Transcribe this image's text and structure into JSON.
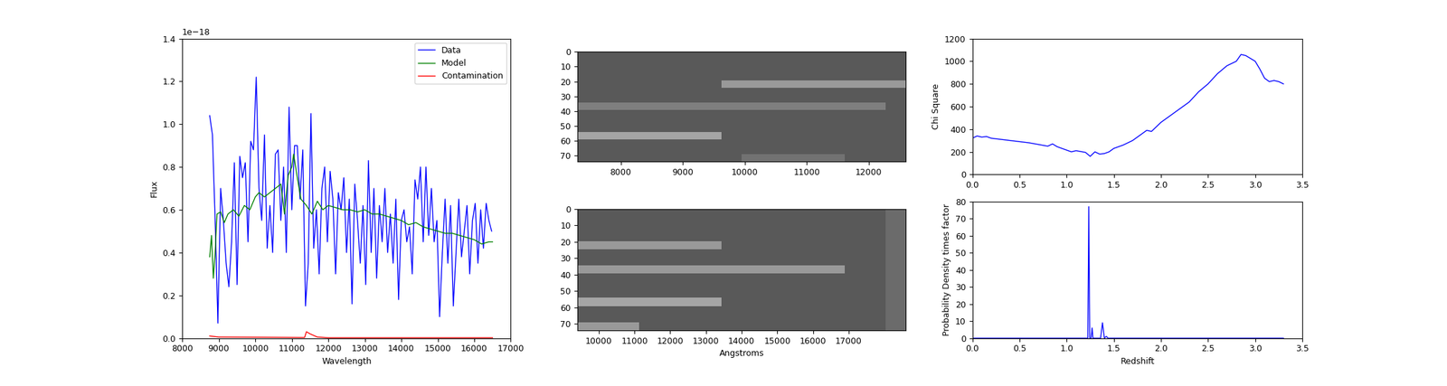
{
  "chart_data": [
    {
      "type": "line",
      "xlabel": "Wavelength",
      "ylabel": "Flux",
      "xlim": [
        8000,
        17000
      ],
      "xticks": [
        8000,
        9000,
        10000,
        11000,
        12000,
        13000,
        14000,
        15000,
        16000,
        17000
      ],
      "ylim": [
        0,
        1.4
      ],
      "yticks": [
        0.0,
        0.2,
        0.4,
        0.6,
        0.8,
        1.0,
        1.2,
        1.4
      ],
      "annotations": [
        {
          "text": "1e−18"
        }
      ],
      "legend": "upper right",
      "series": [
        {
          "name": "Data",
          "color": "#0000ff",
          "x": [
            8750,
            8825,
            8900,
            8975,
            9050,
            9125,
            9200,
            9275,
            9350,
            9425,
            9500,
            9575,
            9650,
            9725,
            9800,
            9875,
            9950,
            10025,
            10100,
            10175,
            10250,
            10325,
            10400,
            10475,
            10550,
            10625,
            10700,
            10775,
            10850,
            10925,
            11000,
            11075,
            11150,
            11225,
            11300,
            11375,
            11450,
            11525,
            11600,
            11675,
            11750,
            11825,
            11900,
            11975,
            12050,
            12125,
            12200,
            12275,
            12350,
            12425,
            12500,
            12575,
            12650,
            12725,
            12800,
            12875,
            12950,
            13025,
            13100,
            13175,
            13250,
            13325,
            13400,
            13475,
            13550,
            13625,
            13700,
            13775,
            13850,
            13925,
            14000,
            14075,
            14150,
            14225,
            14300,
            14375,
            14450,
            14525,
            14600,
            14675,
            14750,
            14825,
            14900,
            14975,
            15050,
            15125,
            15200,
            15275,
            15350,
            15425,
            15500,
            15575,
            15650,
            15725,
            15800,
            15875,
            15950,
            16025,
            16100,
            16175,
            16250,
            16325,
            16400,
            16475
          ],
          "values": [
            1.04,
            0.95,
            0.55,
            0.07,
            0.7,
            0.55,
            0.35,
            0.24,
            0.45,
            0.82,
            0.25,
            0.85,
            0.75,
            0.82,
            0.45,
            0.92,
            0.88,
            1.22,
            0.7,
            0.55,
            0.95,
            0.42,
            0.62,
            0.4,
            0.86,
            0.88,
            0.55,
            0.8,
            0.4,
            1.08,
            0.6,
            0.9,
            0.9,
            0.65,
            0.88,
            0.15,
            0.35,
            1.05,
            0.42,
            0.6,
            0.3,
            0.7,
            0.8,
            0.45,
            0.78,
            0.65,
            0.3,
            0.68,
            0.6,
            0.75,
            0.4,
            0.65,
            0.16,
            0.72,
            0.55,
            0.35,
            0.62,
            0.25,
            0.83,
            0.4,
            0.7,
            0.28,
            0.62,
            0.45,
            0.7,
            0.4,
            0.58,
            0.35,
            0.65,
            0.18,
            0.55,
            0.6,
            0.45,
            0.52,
            0.3,
            0.74,
            0.65,
            0.8,
            0.45,
            0.8,
            0.48,
            0.7,
            0.45,
            0.55,
            0.1,
            0.4,
            0.65,
            0.35,
            0.62,
            0.15,
            0.4,
            0.65,
            0.38,
            0.5,
            0.62,
            0.3,
            0.55,
            0.63,
            0.35,
            0.6,
            0.42,
            0.63,
            0.55,
            0.5
          ]
        },
        {
          "name": "Model",
          "color": "#008000",
          "x": [
            8750,
            8800,
            8850,
            8900,
            8950,
            9050,
            9150,
            9250,
            9400,
            9550,
            9700,
            9850,
            10000,
            10100,
            10250,
            10400,
            10550,
            10700,
            10800,
            10900,
            11000,
            11050,
            11150,
            11250,
            11400,
            11550,
            11700,
            11850,
            12000,
            12200,
            12400,
            12600,
            12800,
            13000,
            13200,
            13400,
            13600,
            13800,
            14000,
            14200,
            14400,
            14600,
            14800,
            15000,
            15200,
            15400,
            15600,
            15800,
            16000,
            16200,
            16400,
            16500
          ],
          "values": [
            0.38,
            0.48,
            0.28,
            0.4,
            0.58,
            0.59,
            0.54,
            0.58,
            0.6,
            0.57,
            0.62,
            0.6,
            0.66,
            0.68,
            0.66,
            0.68,
            0.7,
            0.72,
            0.58,
            0.76,
            0.8,
            0.86,
            0.75,
            0.65,
            0.62,
            0.58,
            0.64,
            0.6,
            0.62,
            0.61,
            0.6,
            0.6,
            0.59,
            0.6,
            0.58,
            0.58,
            0.57,
            0.56,
            0.55,
            0.53,
            0.54,
            0.52,
            0.51,
            0.5,
            0.49,
            0.49,
            0.48,
            0.47,
            0.46,
            0.44,
            0.45,
            0.45
          ]
        },
        {
          "name": "Contamination",
          "color": "#ff0000",
          "x": [
            8750,
            9000,
            11350,
            11400,
            11500,
            11700,
            12000,
            14000,
            16500
          ],
          "values": [
            0.01,
            0.005,
            0.003,
            0.03,
            0.02,
            0.005,
            0.002,
            0.002,
            0.002
          ]
        }
      ]
    },
    {
      "type": "image",
      "xlim": [
        7300,
        12600
      ],
      "xticks": [
        8000,
        9000,
        10000,
        11000,
        12000
      ],
      "ylim": [
        74,
        0
      ],
      "yticks": [
        0,
        10,
        20,
        30,
        40,
        50,
        60,
        70
      ],
      "cells": [
        [
          0.35,
          0.35,
          0.35,
          0.35,
          0.35,
          0.35,
          0.35,
          0.35,
          0.35,
          0.35,
          0.35,
          0.35,
          0.35,
          0.35,
          0.35,
          0.35
        ],
        [
          0.35,
          0.35,
          0.35,
          0.35,
          0.35,
          0.35,
          0.35,
          0.35,
          0.35,
          0.35,
          0.35,
          0.35,
          0.35,
          0.35,
          0.35,
          0.35
        ],
        [
          0.35,
          0.35,
          0.35,
          0.35,
          0.35,
          0.35,
          0.35,
          0.35,
          0.35,
          0.35,
          0.35,
          0.35,
          0.35,
          0.35,
          0.35,
          0.35
        ],
        [
          0.35,
          0.35,
          0.35,
          0.35,
          0.35,
          0.35,
          0.35,
          0.35,
          0.35,
          0.35,
          0.35,
          0.35,
          0.35,
          0.35,
          0.35,
          0.35
        ],
        [
          0.35,
          0.35,
          0.35,
          0.35,
          0.35,
          0.35,
          0.35,
          0.6,
          0.6,
          0.6,
          0.6,
          0.6,
          0.6,
          0.6,
          0.6,
          0.6
        ],
        [
          0.35,
          0.35,
          0.35,
          0.35,
          0.35,
          0.35,
          0.35,
          0.35,
          0.35,
          0.35,
          0.35,
          0.35,
          0.35,
          0.35,
          0.35,
          0.35
        ],
        [
          0.35,
          0.35,
          0.35,
          0.35,
          0.35,
          0.35,
          0.35,
          0.35,
          0.35,
          0.35,
          0.35,
          0.35,
          0.35,
          0.35,
          0.35,
          0.35
        ],
        [
          0.5,
          0.5,
          0.5,
          0.5,
          0.5,
          0.5,
          0.5,
          0.5,
          0.5,
          0.5,
          0.5,
          0.5,
          0.5,
          0.5,
          0.5,
          0.35
        ],
        [
          0.35,
          0.35,
          0.35,
          0.35,
          0.35,
          0.35,
          0.35,
          0.35,
          0.35,
          0.35,
          0.35,
          0.35,
          0.35,
          0.35,
          0.35,
          0.35
        ],
        [
          0.35,
          0.35,
          0.35,
          0.35,
          0.35,
          0.35,
          0.35,
          0.35,
          0.35,
          0.35,
          0.35,
          0.35,
          0.35,
          0.35,
          0.35,
          0.35
        ],
        [
          0.35,
          0.35,
          0.35,
          0.35,
          0.35,
          0.35,
          0.35,
          0.35,
          0.35,
          0.35,
          0.35,
          0.35,
          0.35,
          0.35,
          0.35,
          0.35
        ],
        [
          0.65,
          0.65,
          0.65,
          0.65,
          0.65,
          0.65,
          0.65,
          0.35,
          0.35,
          0.35,
          0.35,
          0.35,
          0.35,
          0.35,
          0.35,
          0.35
        ],
        [
          0.35,
          0.35,
          0.35,
          0.35,
          0.35,
          0.35,
          0.35,
          0.35,
          0.35,
          0.35,
          0.35,
          0.35,
          0.35,
          0.35,
          0.35,
          0.35
        ],
        [
          0.35,
          0.35,
          0.35,
          0.35,
          0.35,
          0.35,
          0.35,
          0.35,
          0.35,
          0.35,
          0.35,
          0.35,
          0.35,
          0.35,
          0.35,
          0.35
        ],
        [
          0.35,
          0.35,
          0.35,
          0.35,
          0.35,
          0.35,
          0.35,
          0.35,
          0.45,
          0.45,
          0.45,
          0.45,
          0.45,
          0.35,
          0.35,
          0.35
        ]
      ]
    },
    {
      "type": "image",
      "xlabel": "Angstroms",
      "xlim": [
        9400,
        18600
      ],
      "xticks": [
        10000,
        11000,
        12000,
        13000,
        14000,
        15000,
        16000,
        17000
      ],
      "ylim": [
        74,
        0
      ],
      "yticks": [
        0,
        10,
        20,
        30,
        40,
        50,
        60,
        70
      ],
      "cells": [
        [
          0.35,
          0.35,
          0.35,
          0.35,
          0.35,
          0.35,
          0.35,
          0.35,
          0.35,
          0.35,
          0.35,
          0.35,
          0.35,
          0.35,
          0.35,
          0.42
        ],
        [
          0.35,
          0.35,
          0.35,
          0.35,
          0.35,
          0.35,
          0.35,
          0.35,
          0.35,
          0.35,
          0.35,
          0.35,
          0.35,
          0.35,
          0.35,
          0.42
        ],
        [
          0.35,
          0.35,
          0.35,
          0.35,
          0.35,
          0.35,
          0.35,
          0.35,
          0.35,
          0.35,
          0.35,
          0.35,
          0.35,
          0.35,
          0.35,
          0.42
        ],
        [
          0.35,
          0.35,
          0.35,
          0.35,
          0.35,
          0.35,
          0.35,
          0.35,
          0.35,
          0.35,
          0.35,
          0.35,
          0.35,
          0.35,
          0.35,
          0.42
        ],
        [
          0.6,
          0.6,
          0.6,
          0.6,
          0.6,
          0.6,
          0.6,
          0.35,
          0.35,
          0.35,
          0.35,
          0.35,
          0.35,
          0.35,
          0.35,
          0.42
        ],
        [
          0.35,
          0.35,
          0.35,
          0.35,
          0.35,
          0.35,
          0.35,
          0.35,
          0.35,
          0.35,
          0.35,
          0.35,
          0.35,
          0.35,
          0.35,
          0.42
        ],
        [
          0.35,
          0.35,
          0.35,
          0.35,
          0.35,
          0.35,
          0.35,
          0.35,
          0.35,
          0.35,
          0.35,
          0.35,
          0.35,
          0.35,
          0.35,
          0.42
        ],
        [
          0.6,
          0.6,
          0.6,
          0.6,
          0.6,
          0.6,
          0.6,
          0.6,
          0.6,
          0.6,
          0.6,
          0.6,
          0.6,
          0.35,
          0.35,
          0.42
        ],
        [
          0.35,
          0.35,
          0.35,
          0.35,
          0.35,
          0.35,
          0.35,
          0.35,
          0.35,
          0.35,
          0.35,
          0.35,
          0.35,
          0.35,
          0.35,
          0.42
        ],
        [
          0.35,
          0.35,
          0.35,
          0.35,
          0.35,
          0.35,
          0.35,
          0.35,
          0.35,
          0.35,
          0.35,
          0.35,
          0.35,
          0.35,
          0.35,
          0.42
        ],
        [
          0.35,
          0.35,
          0.35,
          0.35,
          0.35,
          0.35,
          0.35,
          0.35,
          0.35,
          0.35,
          0.35,
          0.35,
          0.35,
          0.35,
          0.35,
          0.42
        ],
        [
          0.65,
          0.65,
          0.65,
          0.65,
          0.65,
          0.65,
          0.65,
          0.35,
          0.35,
          0.35,
          0.35,
          0.35,
          0.35,
          0.35,
          0.35,
          0.42
        ],
        [
          0.35,
          0.35,
          0.35,
          0.35,
          0.35,
          0.35,
          0.35,
          0.35,
          0.35,
          0.35,
          0.35,
          0.35,
          0.35,
          0.35,
          0.35,
          0.42
        ],
        [
          0.35,
          0.35,
          0.35,
          0.35,
          0.35,
          0.35,
          0.35,
          0.35,
          0.35,
          0.35,
          0.35,
          0.35,
          0.35,
          0.35,
          0.35,
          0.42
        ],
        [
          0.6,
          0.6,
          0.6,
          0.35,
          0.35,
          0.35,
          0.35,
          0.35,
          0.35,
          0.35,
          0.35,
          0.35,
          0.35,
          0.35,
          0.35,
          0.42
        ]
      ]
    },
    {
      "type": "line",
      "ylabel": "Chi Square",
      "xlim": [
        0,
        3.5
      ],
      "xticks": [
        0.0,
        0.5,
        1.0,
        1.5,
        2.0,
        2.5,
        3.0,
        3.5
      ],
      "ylim": [
        0,
        1200
      ],
      "yticks": [
        0,
        200,
        400,
        600,
        800,
        1000,
        1200
      ],
      "series": [
        {
          "color": "#0000ff",
          "x": [
            0.0,
            0.05,
            0.1,
            0.15,
            0.2,
            0.3,
            0.4,
            0.5,
            0.6,
            0.7,
            0.8,
            0.85,
            0.9,
            1.0,
            1.05,
            1.1,
            1.2,
            1.25,
            1.3,
            1.35,
            1.4,
            1.45,
            1.5,
            1.6,
            1.7,
            1.8,
            1.85,
            1.9,
            2.0,
            2.1,
            2.2,
            2.3,
            2.4,
            2.5,
            2.6,
            2.7,
            2.75,
            2.8,
            2.85,
            2.9,
            3.0,
            3.05,
            3.1,
            3.15,
            3.2,
            3.25,
            3.3
          ],
          "values": [
            320,
            340,
            330,
            335,
            320,
            310,
            300,
            290,
            280,
            265,
            250,
            270,
            245,
            215,
            200,
            210,
            195,
            160,
            200,
            180,
            185,
            200,
            230,
            260,
            300,
            360,
            390,
            380,
            460,
            520,
            580,
            640,
            730,
            800,
            890,
            960,
            980,
            1000,
            1060,
            1050,
            1000,
            930,
            850,
            820,
            830,
            820,
            800
          ]
        }
      ]
    },
    {
      "type": "line",
      "xlabel": "Redshift",
      "ylabel": "Probability Density times factor",
      "xlim": [
        0,
        3.5
      ],
      "xticks": [
        0.0,
        0.5,
        1.0,
        1.5,
        2.0,
        2.5,
        3.0,
        3.5
      ],
      "ylim": [
        0,
        80
      ],
      "yticks": [
        0,
        10,
        20,
        30,
        40,
        50,
        60,
        70,
        80
      ],
      "series": [
        {
          "color": "#0000ff",
          "x": [
            0.0,
            1.2,
            1.225,
            1.235,
            1.245,
            1.26,
            1.27,
            1.28,
            1.36,
            1.38,
            1.4,
            1.42,
            1.44,
            3.3
          ],
          "values": [
            0,
            0,
            0,
            77,
            0,
            0,
            6,
            0,
            0,
            9,
            0,
            1,
            0,
            0
          ]
        }
      ]
    }
  ]
}
